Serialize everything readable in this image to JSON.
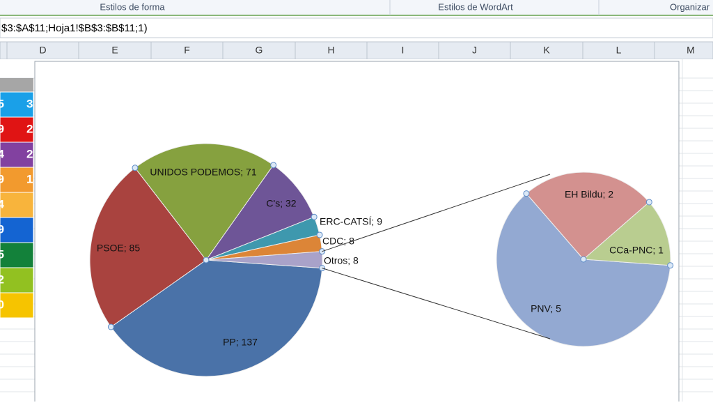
{
  "ribbon": {
    "groups": [
      "Estilos de forma",
      "Estilos de WordArt",
      "Organizar"
    ]
  },
  "formula_bar": {
    "text": "$3:$A$11;Hoja1!$B$3:$B$11;1)"
  },
  "columns": [
    "D",
    "E",
    "F",
    "G",
    "H",
    "I",
    "J",
    "K",
    "L",
    "M"
  ],
  "cells": {
    "first": [
      "5",
      "9",
      "4",
      "9",
      "4",
      "9",
      "5",
      "2",
      "0"
    ],
    "second": [
      "3",
      "2",
      "2",
      "1"
    ]
  },
  "chart_data": {
    "type": "pie-of-pie",
    "pies": [
      {
        "values": [
          137,
          85,
          71,
          32,
          9,
          8,
          8
        ],
        "value_labels": [
          "PP; 137",
          "PSOE; 85",
          "UNIDOS PODEMOS; 71",
          "C's; 32",
          "ERC-CATSÍ; 9",
          "CDC; 8",
          "Otros; 8"
        ],
        "colors": [
          "#4a72a8",
          "#a9433f",
          "#86a13f",
          "#6e5597",
          "#3e98ae",
          "#dc8537",
          "#a9a2c9"
        ]
      },
      {
        "values": [
          5,
          2,
          1
        ],
        "value_labels": [
          "PNV; 5",
          "EH Bildu; 2",
          "CCa-PNC; 1"
        ],
        "colors": [
          "#93a9d2",
          "#d3918f",
          "#b9cd90"
        ]
      }
    ]
  }
}
